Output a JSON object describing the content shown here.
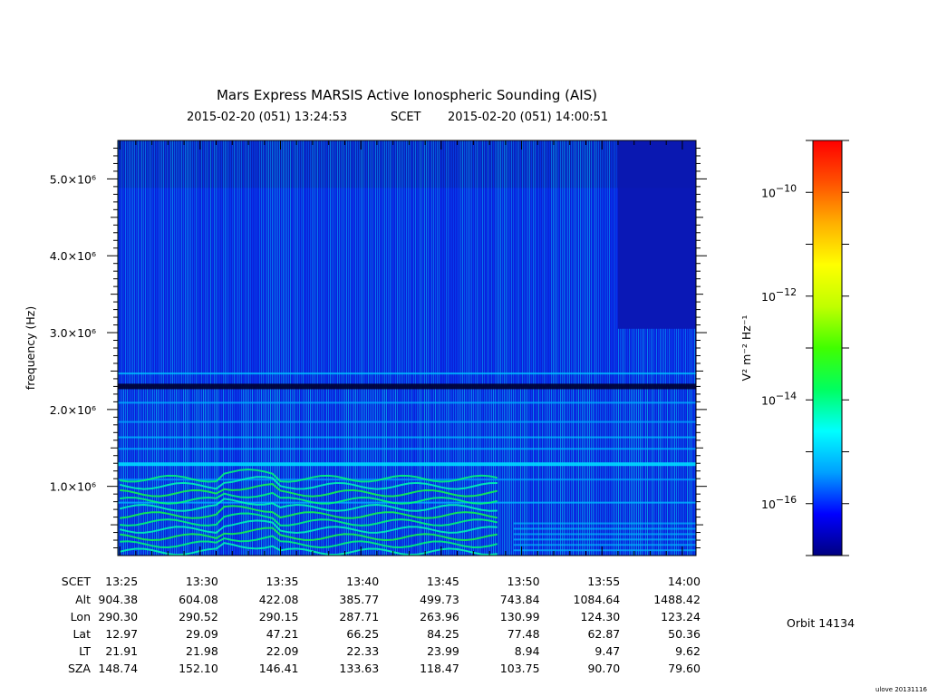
{
  "chart_data": {
    "type": "heatmap",
    "title": "Mars Express MARSIS Active Ionospheric Sounding (AIS)",
    "subtitle": {
      "start": "2015-02-20 (051) 13:24:53",
      "frame": "SCET",
      "end": "2015-02-20 (051) 14:00:51"
    },
    "ylabel": "frequency (Hz)",
    "ylim": [
      100000,
      5500000
    ],
    "y_tick_labels": [
      {
        "value": 1000000,
        "label": "1.0×10⁶"
      },
      {
        "value": 2000000,
        "label": "2.0×10⁶"
      },
      {
        "value": 3000000,
        "label": "3.0×10⁶"
      },
      {
        "value": 4000000,
        "label": "4.0×10⁶"
      },
      {
        "value": 5000000,
        "label": "5.0×10⁶"
      }
    ],
    "x_range_minutes_after_1325": [
      -0.12,
      35.85
    ],
    "x_tick_labels": [
      "13:25",
      "13:30",
      "13:35",
      "13:40",
      "13:45",
      "13:50",
      "13:55",
      "14:00"
    ],
    "x_tick_minutes_after_1325": [
      0,
      5,
      10,
      15,
      20,
      25,
      30,
      35
    ],
    "colorbar": {
      "label": "V² m⁻² Hz⁻¹",
      "log10_range": [
        -17,
        -9
      ],
      "tick_exponents": [
        -16,
        -14,
        -12,
        -10
      ],
      "colors": [
        "#000080",
        "#0000ff",
        "#00a0ff",
        "#00ffff",
        "#00ff60",
        "#40ff00",
        "#c0ff00",
        "#ffff00",
        "#ffb000",
        "#ff5000",
        "#ff0000"
      ]
    },
    "features": {
      "background_log10": -15.6,
      "dark_band_frequency_hz": 2300000,
      "bright_band_frequency_hz": 1300000,
      "upper_cutoff_minute": 31
    },
    "ephemeris": {
      "labels": [
        "SCET",
        "Alt",
        "Lon",
        "Lat",
        "LT",
        "SZA"
      ],
      "rows": [
        [
          "13:25",
          "13:30",
          "13:35",
          "13:40",
          "13:45",
          "13:50",
          "13:55",
          "14:00"
        ],
        [
          "904.38",
          "604.08",
          "422.08",
          "385.77",
          "499.73",
          "743.84",
          "1084.64",
          "1488.42"
        ],
        [
          "290.30",
          "290.52",
          "290.15",
          "287.71",
          "263.96",
          "130.99",
          "124.30",
          "123.24"
        ],
        [
          "12.97",
          "29.09",
          "47.21",
          "66.25",
          "84.25",
          "77.48",
          "62.87",
          "50.36"
        ],
        [
          "21.91",
          "21.98",
          "22.09",
          "22.33",
          "23.99",
          "8.94",
          "9.47",
          "9.62"
        ],
        [
          "148.74",
          "152.10",
          "146.41",
          "133.63",
          "118.47",
          "103.75",
          "90.70",
          "79.60"
        ]
      ]
    }
  },
  "orbit_label": "Orbit 14134",
  "credit": "ulove 20131116"
}
